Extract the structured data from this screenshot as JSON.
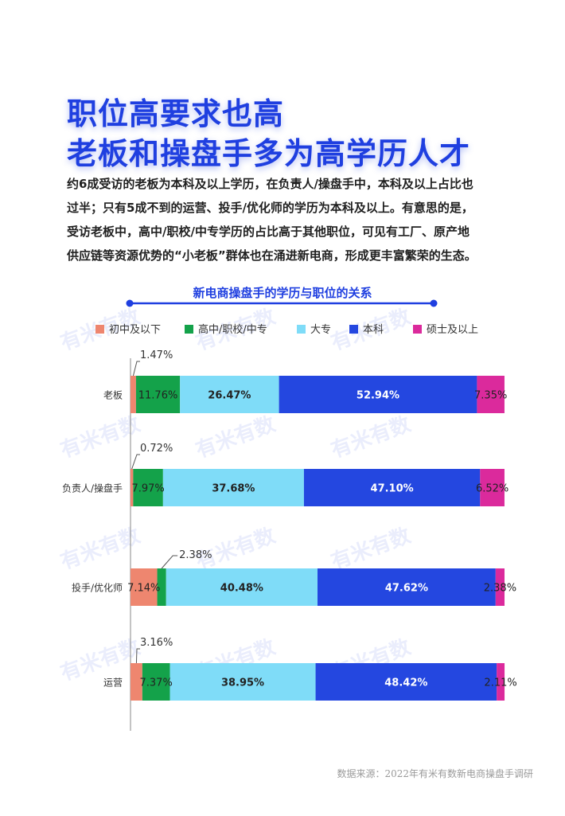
{
  "headline": {
    "line1": "职位高要求也高",
    "line2": "老板和操盘手多为高学历人才"
  },
  "paragraph": {
    "lines": [
      "约6成受访的老板为本科及以上学历，在负责人/操盘手中，本科及以上占比也",
      "过半；只有5成不到的运营、投手/优化师的学历为本科及以上。有意思的是，",
      "受访老板中，高中/职校/中专学历的占比高于其他职位，可见有工厂、原产地",
      "供应链等资源优势的“小老板”群体也在涌进新电商，形成更丰富繁荣的生态。"
    ]
  },
  "source": "数据来源：2022年有米有数新电商操盘手调研",
  "watermark": "有米有数",
  "colors": {
    "title": "#1f3fe0",
    "chart_title": "#1f3fe0",
    "series": [
      "#ee866f",
      "#14a24a",
      "#7fdcf8",
      "#2447e0",
      "#db2a9c"
    ]
  },
  "chart_data": {
    "type": "bar",
    "orientation": "horizontal",
    "stacked": true,
    "title": "新电商操盘手的学历与职位的关系",
    "categories": [
      "老板",
      "负责人/操盘手",
      "投手/优化师",
      "运营"
    ],
    "series": [
      {
        "name": "初中及以下",
        "values": [
          1.47,
          0.72,
          7.14,
          3.16
        ],
        "labels": [
          "1.47%",
          "0.72%",
          "7.14%",
          "3.16%"
        ]
      },
      {
        "name": "高中/职校/中专",
        "values": [
          11.76,
          7.97,
          2.38,
          7.37
        ],
        "labels": [
          "11.76%",
          "7.97%",
          "2.38%",
          "7.37%"
        ]
      },
      {
        "name": "大专",
        "values": [
          26.47,
          37.68,
          40.48,
          38.95
        ],
        "labels": [
          "26.47%",
          "37.68%",
          "40.48%",
          "38.95%"
        ]
      },
      {
        "name": "本科",
        "values": [
          52.94,
          47.1,
          47.62,
          48.42
        ],
        "labels": [
          "52.94%",
          "47.10%",
          "47.62%",
          "48.42%"
        ]
      },
      {
        "name": "硕士及以上",
        "values": [
          7.35,
          6.52,
          2.38,
          2.11
        ],
        "labels": [
          "7.35%",
          "6.52%",
          "2.38%",
          "2.11%"
        ]
      }
    ],
    "xlim": [
      0,
      100
    ],
    "legend": "top-left",
    "grid": false
  }
}
